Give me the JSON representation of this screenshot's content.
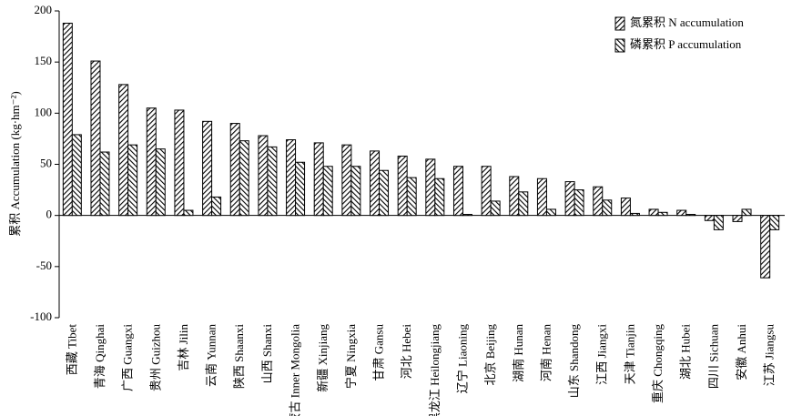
{
  "chart_data": {
    "type": "bar",
    "y_label": "累积 Accumulation (kg·hm⁻²)",
    "categories": [
      "西藏 Tibet",
      "青海 Qinghai",
      "广西 Guangxi",
      "贵州 Guizhou",
      "吉林 Jilin",
      "云南 Yunnan",
      "陕西 Shaanxi",
      "山西 Shanxi",
      "内蒙古 Inner Mongolia",
      "新疆 Xinjiang",
      "宁夏 Ningxia",
      "甘肃 Gansu",
      "河北 Hebei",
      "黑龙江 Heilongjiang",
      "辽宁 Liaoning",
      "北京 Beijing",
      "湖南 Hunan",
      "河南 Henan",
      "山东 Shandong",
      "江西 Jiangxi",
      "天津 Tianjin",
      "重庆 Chongqing",
      "湖北 Hubei",
      "四川 Sichuan",
      "安徽 Anhui",
      "江苏 Jiangsu"
    ],
    "series": [
      {
        "name": "氮累积 N accumulation",
        "color": "#000000",
        "hatch": "forward",
        "values": [
          188,
          151,
          128,
          105,
          103,
          92,
          90,
          78,
          74,
          71,
          69,
          63,
          58,
          55,
          48,
          48,
          38,
          36,
          33,
          28,
          17,
          6,
          5,
          -5,
          -6,
          -61
        ]
      },
      {
        "name": "磷累积 P accumulation",
        "color": "#000000",
        "hatch": "backward",
        "values": [
          79,
          62,
          69,
          65,
          5,
          18,
          73,
          67,
          52,
          48,
          48,
          44,
          37,
          36,
          1,
          14,
          23,
          6,
          25,
          15,
          2,
          3,
          1,
          -14,
          6,
          -14
        ]
      }
    ],
    "ylim": [
      -100,
      200
    ],
    "yticks": [
      -100,
      -50,
      0,
      50,
      100,
      150,
      200
    ],
    "grid": false,
    "legend": "top-right"
  }
}
